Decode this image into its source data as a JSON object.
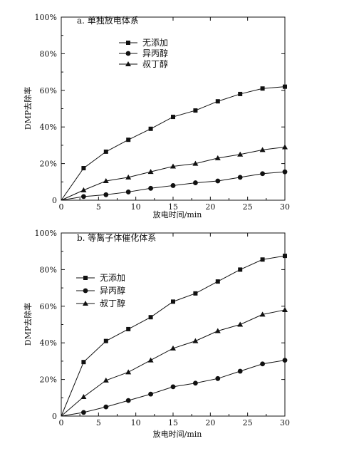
{
  "chart_data": [
    {
      "type": "line",
      "title": "a. 单独放电体系",
      "xlabel": "放电时间/min",
      "ylabel": "DMP去除率",
      "xlim": [
        0,
        30
      ],
      "ylim": [
        0,
        100
      ],
      "xticks": [
        "0",
        "5",
        "10",
        "15",
        "20",
        "25",
        "30"
      ],
      "yticks": [
        "0",
        "20%",
        "40%",
        "60%",
        "80%",
        "100%"
      ],
      "grid": false,
      "legend_position": "top-left",
      "x": [
        0,
        3,
        6,
        9,
        12,
        15,
        18,
        21,
        24,
        27,
        30
      ],
      "series": [
        {
          "name": "无添加",
          "marker": "square",
          "values": [
            0,
            17.5,
            26.5,
            33,
            39,
            45.5,
            49,
            54,
            58,
            61,
            62
          ]
        },
        {
          "name": "异丙醇",
          "marker": "circle",
          "values": [
            0,
            2,
            3,
            4.5,
            6.5,
            8,
            9.5,
            10.5,
            12.5,
            14.5,
            15.5
          ]
        },
        {
          "name": "叔丁醇",
          "marker": "triangle",
          "values": [
            0,
            5.5,
            10.5,
            12.5,
            15.5,
            18.5,
            20,
            23,
            25,
            27.5,
            29
          ]
        }
      ]
    },
    {
      "type": "line",
      "title": "b. 等离子体催化体系",
      "xlabel": "放电时间/min",
      "ylabel": "DMP去除率",
      "xlim": [
        0,
        30
      ],
      "ylim": [
        0,
        100
      ],
      "xticks": [
        "0",
        "5",
        "10",
        "15",
        "20",
        "25",
        "30"
      ],
      "yticks": [
        "0",
        "20%",
        "40%",
        "60%",
        "80%",
        "100%"
      ],
      "grid": false,
      "legend_position": "left",
      "x": [
        0,
        3,
        6,
        9,
        12,
        15,
        18,
        21,
        24,
        27,
        30
      ],
      "series": [
        {
          "name": "无添加",
          "marker": "square",
          "values": [
            0,
            29.5,
            41,
            47.5,
            54,
            62.5,
            67,
            73.5,
            80,
            85.5,
            87.5
          ]
        },
        {
          "name": "异丙醇",
          "marker": "circle",
          "values": [
            0,
            2,
            5,
            8.5,
            12,
            16,
            18,
            20.5,
            24.5,
            28.5,
            30.5
          ]
        },
        {
          "name": "叔丁醇",
          "marker": "triangle",
          "values": [
            0,
            10.5,
            19.5,
            24,
            30.5,
            37,
            41,
            46.5,
            50,
            55.5,
            58
          ]
        }
      ]
    }
  ]
}
